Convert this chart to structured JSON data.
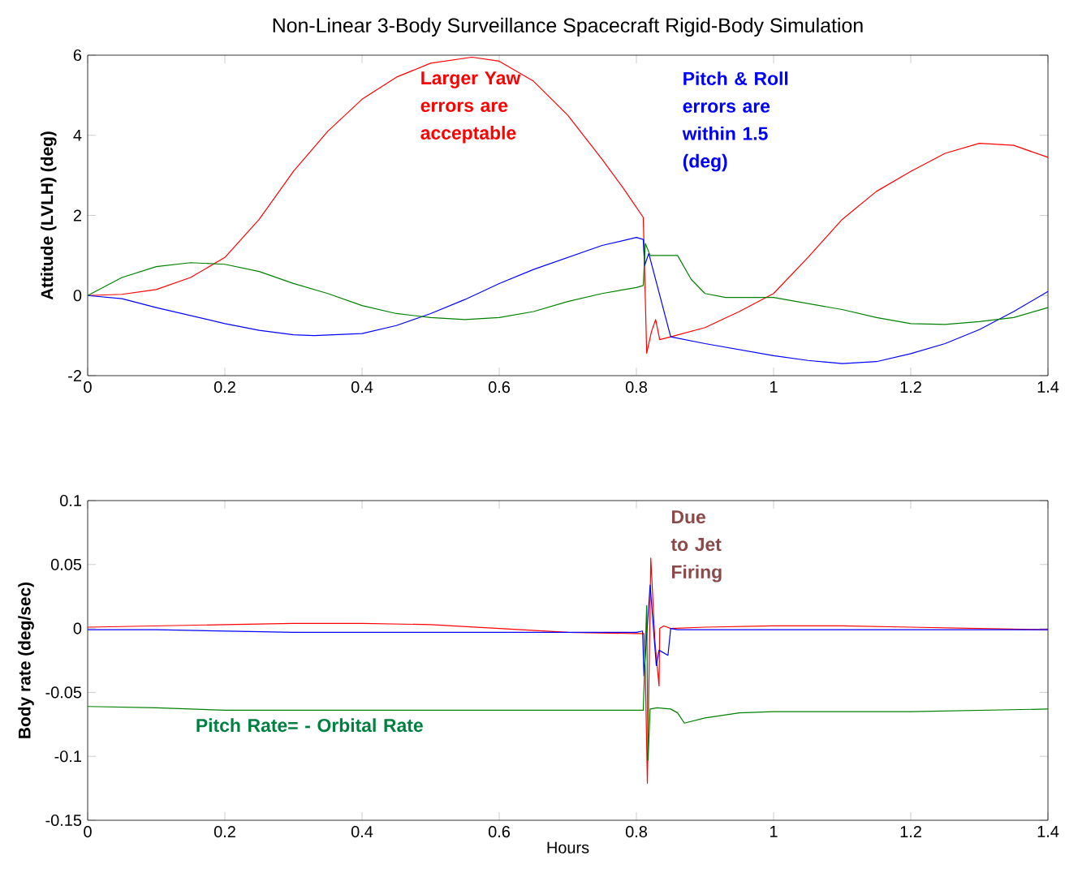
{
  "chart_data": [
    {
      "type": "line",
      "title": "Non-Linear 3-Body Surveillance Spacecraft Rigid-Body Simulation",
      "ylabel": "Attitude (LVLH) (deg)",
      "xlim": [
        0,
        1.4
      ],
      "ylim": [
        -2,
        6
      ],
      "xticks": [
        0,
        0.2,
        0.4,
        0.6,
        0.8,
        1,
        1.2,
        1.4
      ],
      "yticks": [
        -2,
        0,
        2,
        4,
        6
      ],
      "annotations": [
        "Larger Yaw errors are acceptable",
        "Pitch & Roll errors are within 1.5 (deg)"
      ],
      "series": [
        {
          "color": "#ff0000",
          "x": [
            0,
            0.05,
            0.1,
            0.15,
            0.2,
            0.25,
            0.3,
            0.35,
            0.4,
            0.45,
            0.5,
            0.56,
            0.6,
            0.65,
            0.7,
            0.75,
            0.78,
            0.81,
            0.815,
            0.822,
            0.828,
            0.834,
            0.85,
            0.9,
            0.95,
            1.0,
            1.05,
            1.1,
            1.15,
            1.2,
            1.25,
            1.3,
            1.35,
            1.4
          ],
          "values": [
            0,
            0.03,
            0.15,
            0.45,
            0.95,
            1.9,
            3.1,
            4.1,
            4.9,
            5.45,
            5.8,
            5.95,
            5.85,
            5.35,
            4.5,
            3.4,
            2.7,
            1.95,
            -1.44,
            -0.9,
            -0.6,
            -1.1,
            -1.03,
            -0.8,
            -0.4,
            0.05,
            0.95,
            1.9,
            2.6,
            3.1,
            3.55,
            3.8,
            3.75,
            3.45
          ]
        },
        {
          "color": "#0000ff",
          "x": [
            0,
            0.05,
            0.1,
            0.15,
            0.2,
            0.25,
            0.3,
            0.33,
            0.4,
            0.45,
            0.5,
            0.55,
            0.6,
            0.65,
            0.7,
            0.75,
            0.8,
            0.81,
            0.812,
            0.818,
            0.85,
            0.9,
            0.95,
            1.0,
            1.05,
            1.1,
            1.15,
            1.2,
            1.25,
            1.3,
            1.35,
            1.4
          ],
          "values": [
            0,
            -0.08,
            -0.3,
            -0.5,
            -0.7,
            -0.87,
            -0.98,
            -1.0,
            -0.95,
            -0.75,
            -0.45,
            -0.1,
            0.3,
            0.65,
            0.95,
            1.25,
            1.45,
            1.4,
            0.75,
            1.05,
            -1.03,
            -1.2,
            -1.35,
            -1.5,
            -1.62,
            -1.7,
            -1.65,
            -1.45,
            -1.2,
            -0.85,
            -0.4,
            0.1
          ]
        },
        {
          "color": "#008000",
          "x": [
            0,
            0.05,
            0.1,
            0.15,
            0.2,
            0.25,
            0.3,
            0.35,
            0.4,
            0.45,
            0.5,
            0.55,
            0.6,
            0.65,
            0.7,
            0.75,
            0.8,
            0.81,
            0.813,
            0.82,
            0.86,
            0.88,
            0.9,
            0.93,
            1.0,
            1.05,
            1.1,
            1.15,
            1.2,
            1.25,
            1.3,
            1.35,
            1.4
          ],
          "values": [
            0,
            0.45,
            0.72,
            0.82,
            0.78,
            0.6,
            0.3,
            0.05,
            -0.25,
            -0.45,
            -0.55,
            -0.6,
            -0.55,
            -0.4,
            -0.15,
            0.05,
            0.2,
            0.25,
            1.3,
            1.0,
            1.0,
            0.4,
            0.05,
            -0.05,
            -0.05,
            -0.2,
            -0.35,
            -0.55,
            -0.7,
            -0.72,
            -0.65,
            -0.55,
            -0.3
          ]
        }
      ]
    },
    {
      "type": "line",
      "xlabel": "Hours",
      "ylabel": "Body rate (deg/sec)",
      "xlim": [
        0,
        1.4
      ],
      "ylim": [
        -0.15,
        0.1
      ],
      "xticks": [
        0,
        0.2,
        0.4,
        0.6,
        0.8,
        1,
        1.2,
        1.4
      ],
      "yticks": [
        -0.15,
        -0.1,
        -0.05,
        0,
        0.05,
        0.1
      ],
      "annotations": [
        "Due to Jet Firing",
        "Pitch Rate= - Orbital Rate"
      ],
      "series": [
        {
          "color": "#ff0000",
          "x": [
            0,
            0.1,
            0.2,
            0.3,
            0.4,
            0.5,
            0.6,
            0.7,
            0.8,
            0.811,
            0.813,
            0.816,
            0.821,
            0.827,
            0.833,
            0.834,
            0.84,
            0.85,
            0.9,
            1.0,
            1.1,
            1.2,
            1.3,
            1.4
          ],
          "values": [
            0.001,
            0.002,
            0.003,
            0.004,
            0.004,
            0.003,
            0.0,
            -0.003,
            -0.004,
            -0.004,
            -0.034,
            -0.121,
            0.055,
            -0.01,
            -0.045,
            0.0,
            0.002,
            0.0,
            0.001,
            0.002,
            0.002,
            0.001,
            0.0,
            -0.001
          ]
        },
        {
          "color": "#0000ff",
          "x": [
            0,
            0.1,
            0.2,
            0.3,
            0.4,
            0.5,
            0.6,
            0.7,
            0.8,
            0.809,
            0.811,
            0.82,
            0.829,
            0.833,
            0.846,
            0.85,
            0.86,
            0.9,
            1.0,
            1.1,
            1.2,
            1.3,
            1.4
          ],
          "values": [
            -0.001,
            -0.001,
            -0.002,
            -0.003,
            -0.003,
            -0.003,
            -0.003,
            -0.003,
            -0.003,
            -0.002,
            -0.037,
            0.034,
            -0.029,
            -0.017,
            -0.021,
            0.0,
            -0.001,
            -0.001,
            -0.001,
            -0.001,
            -0.001,
            -0.001,
            -0.001
          ]
        },
        {
          "color": "#008000",
          "x": [
            0,
            0.1,
            0.2,
            0.3,
            0.5,
            0.7,
            0.8,
            0.81,
            0.815,
            0.817,
            0.82,
            0.83,
            0.85,
            0.86,
            0.87,
            0.9,
            0.95,
            1.0,
            1.2,
            1.4
          ],
          "values": [
            -0.061,
            -0.062,
            -0.064,
            -0.064,
            -0.064,
            -0.064,
            -0.064,
            -0.064,
            0.018,
            -0.103,
            -0.063,
            -0.062,
            -0.063,
            -0.066,
            -0.074,
            -0.07,
            -0.066,
            -0.065,
            -0.065,
            -0.063
          ]
        }
      ]
    }
  ]
}
